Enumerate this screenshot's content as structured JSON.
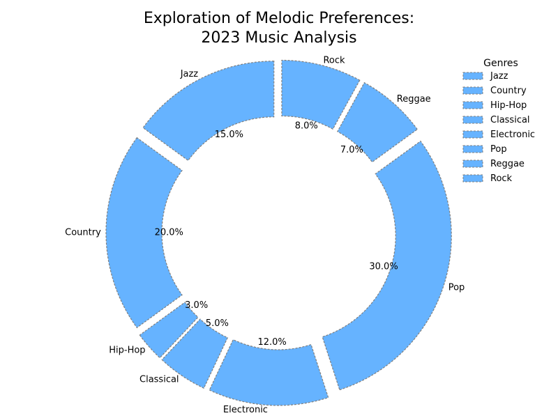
{
  "chart_data": {
    "type": "pie",
    "title_lines": [
      "Exploration of Melodic Preferences:",
      "2023 Music Analysis"
    ],
    "categories": [
      "Jazz",
      "Country",
      "Hip-Hop",
      "Classical",
      "Electronic",
      "Pop",
      "Reggae",
      "Rock"
    ],
    "values": [
      15,
      20,
      3,
      5,
      12,
      30,
      7,
      8
    ],
    "percent_labels": [
      "15.0%",
      "20.0%",
      "3.0%",
      "5.0%",
      "12.0%",
      "30.0%",
      "7.0%",
      "8.0%"
    ],
    "donut": true,
    "exploded": true,
    "legend": {
      "title": "Genres",
      "placement": "top-right",
      "entries": [
        "Jazz",
        "Country",
        "Hip-Hop",
        "Classical",
        "Electronic",
        "Pop",
        "Reggae",
        "Rock"
      ]
    },
    "color": "#66b3ff",
    "edge_color": "#7f7f7f"
  }
}
